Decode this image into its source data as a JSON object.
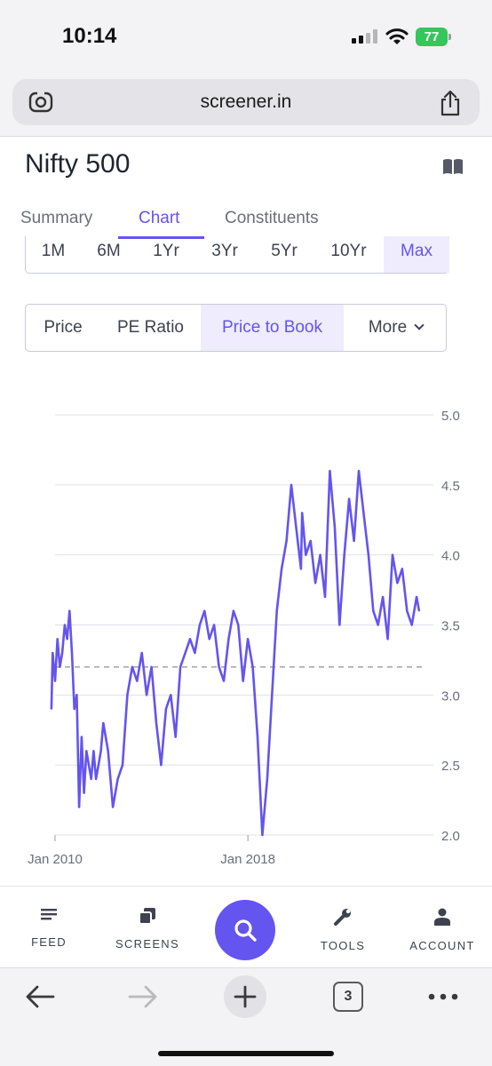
{
  "status_bar": {
    "time": "10:14",
    "battery": "77",
    "battery_color": "#34c759"
  },
  "browser": {
    "url": "screener.in",
    "tab_count": "3",
    "icons": [
      "lens-icon",
      "share-icon",
      "back-icon",
      "forward-icon",
      "new-tab-icon",
      "more-icon"
    ]
  },
  "page": {
    "title": "Nifty 500",
    "accent_color": "#6454f0",
    "tabs": [
      {
        "label": "Summary",
        "active": false
      },
      {
        "label": "Chart",
        "active": true
      },
      {
        "label": "Constituents",
        "active": false
      }
    ],
    "periods": [
      "1M",
      "6M",
      "1Yr",
      "3Yr",
      "5Yr",
      "10Yr",
      "Max"
    ],
    "selected_period": "Max",
    "metrics": [
      "Price",
      "PE Ratio",
      "Price to Book",
      "More"
    ],
    "selected_metric": "Price to Book"
  },
  "chart_data": {
    "type": "line",
    "title": "",
    "xlabel": "",
    "ylabel": "",
    "x_tick_labels": [
      "Jan 2010",
      "Jan 2018"
    ],
    "y_tick_labels": [
      "2.0",
      "2.5",
      "3.0",
      "3.5",
      "4.0",
      "4.5",
      "5.0"
    ],
    "ylim": [
      2.0,
      5.0
    ],
    "xlim": [
      2010.0,
      2025.4
    ],
    "y_axis_position": "right",
    "grid": true,
    "reference_line": {
      "y": 3.2,
      "style": "dashed"
    },
    "series": [
      {
        "color": "#6454f0",
        "x": [
          2009.85,
          2009.9,
          2010.0,
          2010.1,
          2010.2,
          2010.3,
          2010.4,
          2010.5,
          2010.6,
          2010.7,
          2010.8,
          2010.9,
          2011.0,
          2011.1,
          2011.2,
          2011.3,
          2011.4,
          2011.5,
          2011.6,
          2011.7,
          2011.8,
          2011.9,
          2012.0,
          2012.2,
          2012.4,
          2012.6,
          2012.8,
          2013.0,
          2013.2,
          2013.4,
          2013.6,
          2013.8,
          2014.0,
          2014.2,
          2014.4,
          2014.6,
          2014.8,
          2015.0,
          2015.2,
          2015.4,
          2015.6,
          2015.8,
          2016.0,
          2016.2,
          2016.4,
          2016.6,
          2016.8,
          2017.0,
          2017.2,
          2017.4,
          2017.6,
          2017.8,
          2018.0,
          2018.2,
          2018.4,
          2018.6,
          2018.8,
          2019.0,
          2019.2,
          2019.4,
          2019.6,
          2019.8,
          2020.0,
          2020.2,
          2020.25,
          2020.4,
          2020.6,
          2020.8,
          2021.0,
          2021.2,
          2021.4,
          2021.6,
          2021.8,
          2022.0,
          2022.2,
          2022.4,
          2022.6,
          2022.8,
          2023.0,
          2023.2,
          2023.4,
          2023.6,
          2023.8,
          2024.0,
          2024.2,
          2024.4,
          2024.6,
          2024.8,
          2025.0,
          2025.1
        ],
        "y": [
          2.9,
          3.3,
          3.1,
          3.4,
          3.2,
          3.3,
          3.5,
          3.4,
          3.6,
          3.3,
          2.9,
          3.0,
          2.2,
          2.7,
          2.3,
          2.6,
          2.5,
          2.4,
          2.6,
          2.4,
          2.5,
          2.6,
          2.8,
          2.6,
          2.2,
          2.4,
          2.5,
          3.0,
          3.2,
          3.1,
          3.3,
          3.0,
          3.2,
          2.8,
          2.5,
          2.9,
          3.0,
          2.7,
          3.2,
          3.3,
          3.4,
          3.3,
          3.5,
          3.6,
          3.4,
          3.5,
          3.2,
          3.1,
          3.4,
          3.6,
          3.5,
          3.1,
          3.4,
          3.2,
          2.7,
          2.0,
          2.4,
          3.0,
          3.6,
          3.9,
          4.1,
          4.5,
          4.2,
          3.9,
          4.3,
          4.0,
          4.1,
          3.8,
          4.0,
          3.7,
          4.6,
          4.2,
          3.5,
          4.0,
          4.4,
          4.1,
          4.6,
          4.3,
          4.0,
          3.6,
          3.5,
          3.7,
          3.4,
          4.0,
          3.8,
          3.9,
          3.6,
          3.5,
          3.7,
          3.6
        ]
      }
    ]
  },
  "bottom_nav": {
    "items": [
      {
        "label": "FEED",
        "icon": "feed-icon"
      },
      {
        "label": "SCREENS",
        "icon": "screens-icon"
      },
      {
        "label": "TOOLS",
        "icon": "tools-icon"
      },
      {
        "label": "ACCOUNT",
        "icon": "account-icon"
      }
    ],
    "search_icon": "search-icon"
  }
}
